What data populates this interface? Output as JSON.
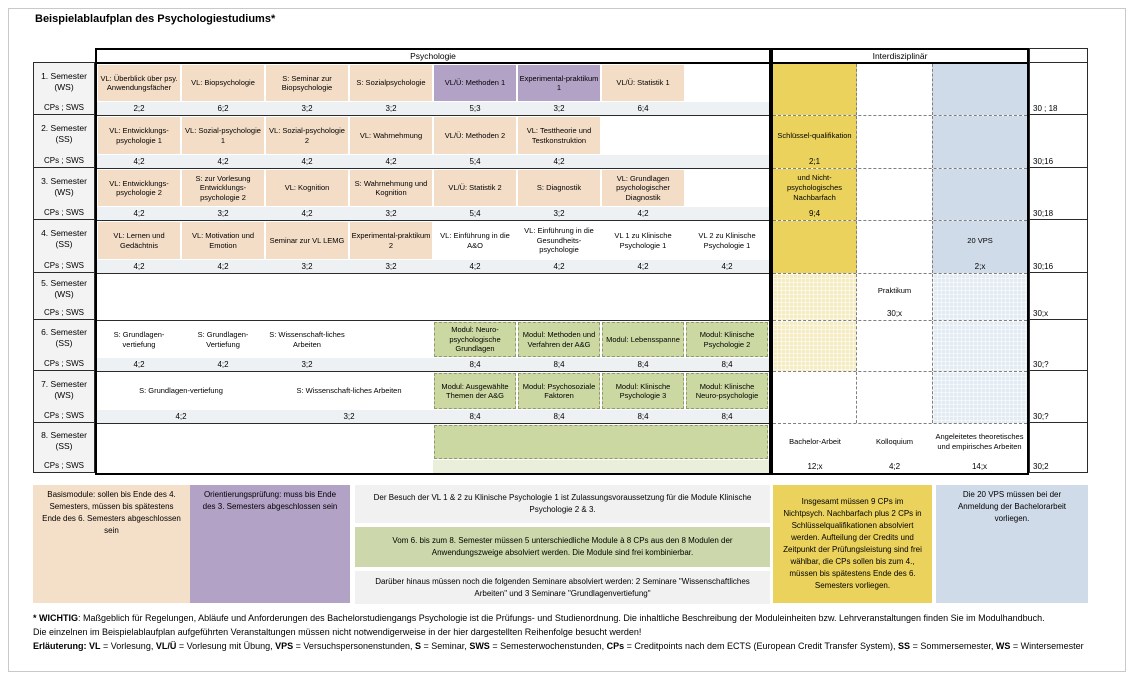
{
  "title": "Beispielablaufplan des Psychologiestudiums*",
  "table": {
    "psych_header": "Psychologie",
    "inter_header": "Interdisziplinär",
    "cps_label": "CPs ; SWS",
    "semesters": [
      {
        "label": "1. Semester",
        "term": "(WS)",
        "total": "30 ; 18",
        "yellow": "solid",
        "blue": "solid",
        "courses": [
          {
            "t": "VL: Überblick über psy. Anwendungsfächer",
            "cp": "2;2",
            "c": 1,
            "k": "beige"
          },
          {
            "t": "VL: Biopsychologie",
            "cp": "6;2",
            "c": 2,
            "k": "beige"
          },
          {
            "t": "S: Seminar zur Biopsychologie",
            "cp": "3;2",
            "c": 3,
            "k": "beige"
          },
          {
            "t": "S: Sozialpsychologie",
            "cp": "3;2",
            "c": 4,
            "k": "beige"
          },
          {
            "t": "VL/Ü: Methoden 1",
            "cp": "5;3",
            "c": 5,
            "k": "purple"
          },
          {
            "t": "Experimental-praktikum 1",
            "cp": "3;2",
            "c": 6,
            "k": "purple"
          },
          {
            "t": "VL/Ü: Statistik 1",
            "cp": "6;4",
            "c": 7,
            "k": "beige"
          }
        ],
        "inter": {}
      },
      {
        "label": "2. Semester",
        "term": "(SS)",
        "total": "30;16",
        "yellow": "solid",
        "blue": "solid",
        "courses": [
          {
            "t": "VL: Entwicklungs-psychologie 1",
            "cp": "4;2",
            "c": 1,
            "k": "beige"
          },
          {
            "t": "VL: Sozial-psychologie 1",
            "cp": "4;2",
            "c": 2,
            "k": "beige"
          },
          {
            "t": "VL: Sozial-psychologie 2",
            "cp": "4;2",
            "c": 3,
            "k": "beige"
          },
          {
            "t": "VL: Wahrnehmung",
            "cp": "4;2",
            "c": 4,
            "k": "beige"
          },
          {
            "t": "VL/Ü: Methoden 2",
            "cp": "5;4",
            "c": 5,
            "k": "beige"
          },
          {
            "t": "VL: Testtheorie und Testkonstruktion",
            "cp": "4;2",
            "c": 6,
            "k": "beige"
          }
        ],
        "inter": {
          "y": {
            "t": "Schlüssel-qualifikation",
            "cp": "2;1"
          }
        }
      },
      {
        "label": "3. Semester",
        "term": "(WS)",
        "total": "30;18",
        "yellow": "solid",
        "blue": "solid",
        "courses": [
          {
            "t": "VL: Entwicklungs-psychologie 2",
            "cp": "4;2",
            "c": 1,
            "k": "beige"
          },
          {
            "t": "S: zur Vorlesung Entwicklungs-psychologie 2",
            "cp": "3;2",
            "c": 2,
            "k": "beige"
          },
          {
            "t": "VL: Kognition",
            "cp": "4;2",
            "c": 3,
            "k": "beige"
          },
          {
            "t": "S: Wahrnehmung und Kognition",
            "cp": "3;2",
            "c": 4,
            "k": "beige"
          },
          {
            "t": "VL/Ü: Statistik 2",
            "cp": "5;4",
            "c": 5,
            "k": "beige"
          },
          {
            "t": "S: Diagnostik",
            "cp": "3;2",
            "c": 6,
            "k": "beige"
          },
          {
            "t": "VL: Grundlagen psychologischer Diagnostik",
            "cp": "4;2",
            "c": 7,
            "k": "beige"
          }
        ],
        "inter": {
          "y": {
            "t": "und Nicht-psychologisches Nachbarfach",
            "cp": "9;4"
          }
        }
      },
      {
        "label": "4. Semester",
        "term": "(SS)",
        "total": "30;16",
        "yellow": "solid",
        "blue": "solid",
        "courses": [
          {
            "t": "VL: Lernen und Gedächtnis",
            "cp": "4;2",
            "c": 1,
            "k": "beige"
          },
          {
            "t": "VL: Motivation und Emotion",
            "cp": "4;2",
            "c": 2,
            "k": "beige"
          },
          {
            "t": "Seminar zur VL LEMG",
            "cp": "3;2",
            "c": 3,
            "k": "beige"
          },
          {
            "t": "Experimental-praktikum 2",
            "cp": "3;2",
            "c": 4,
            "k": "beige"
          },
          {
            "t": "VL: Einführung in die A&O",
            "cp": "4;2",
            "c": 5,
            "k": "white"
          },
          {
            "t": "VL: Einführung in die Gesundheits-psychologie",
            "cp": "4;2",
            "c": 6,
            "k": "white"
          },
          {
            "t": "VL 1 zu Klinische Psychologie 1",
            "cp": "4;2",
            "c": 7,
            "k": "white"
          },
          {
            "t": "VL 2 zu Klinische Psychologie 1",
            "cp": "4;2",
            "c": 8,
            "k": "white"
          }
        ],
        "inter": {
          "b": {
            "t": "20 VPS",
            "cp": "2;x"
          }
        }
      },
      {
        "label": "5. Semester",
        "term": "(WS)",
        "total": "30;x",
        "yellow": "light",
        "blue": "light",
        "merged": true,
        "courses": [],
        "inter": {
          "m": {
            "t": "Praktikum",
            "cp": "30;x"
          }
        }
      },
      {
        "label": "6. Semester",
        "term": "(SS)",
        "total": "30;?",
        "yellow": "light",
        "blue": "light",
        "courses": [
          {
            "t": "S: Grundlagen-vertiefung",
            "cp": "4;2",
            "c": 1,
            "k": "white"
          },
          {
            "t": "S: Grundlagen-Vertiefung",
            "cp": "4;2",
            "c": 2,
            "k": "white"
          },
          {
            "t": "S: Wissenschaft-liches Arbeiten",
            "cp": "3;2",
            "c": 3,
            "k": "white"
          },
          {
            "t": "Modul: Neuro-psychologische Grundlagen",
            "cp": "8;4",
            "c": 5,
            "k": "green"
          },
          {
            "t": "Modul: Methoden und Verfahren der A&G",
            "cp": "8;4",
            "c": 6,
            "k": "green"
          },
          {
            "t": "Modul: Lebensspanne",
            "cp": "8;4",
            "c": 7,
            "k": "green"
          },
          {
            "t": "Modul: Klinische Psychologie 2",
            "cp": "8;4",
            "c": 8,
            "k": "green"
          }
        ],
        "inter": {}
      },
      {
        "label": "7. Semester",
        "term": "(WS)",
        "total": "30;?",
        "yellow": "none",
        "blue": "light",
        "courses": [
          {
            "t": "S: Grundlagen-vertiefung",
            "cp": "4;2",
            "c": 1,
            "s": 2,
            "k": "white"
          },
          {
            "t": "S: Wissenschaft-liches Arbeiten",
            "cp": "3;2",
            "c": 3,
            "s": 2,
            "k": "white"
          },
          {
            "t": "Modul: Ausgewählte Themen der A&G",
            "cp": "8;4",
            "c": 5,
            "k": "green"
          },
          {
            "t": "Modul: Psychosoziale Faktoren",
            "cp": "8;4",
            "c": 6,
            "k": "green"
          },
          {
            "t": "Modul: Klinische Psychologie 3",
            "cp": "8;4",
            "c": 7,
            "k": "green"
          },
          {
            "t": "Modul: Klinische Neuro-psychologie",
            "cp": "8;4",
            "c": 8,
            "k": "green"
          }
        ],
        "inter": {}
      },
      {
        "label": "8. Semester",
        "term": "(SS)",
        "total": "30;2",
        "yellow": "none",
        "blue": "none",
        "merged": true,
        "no_dash": true,
        "green_area": {
          "col": 5,
          "span": 4
        },
        "courses": [],
        "inter": {
          "y": {
            "t": "Bachelor-Arbeit",
            "cp": "12;x"
          },
          "m": {
            "t": "Kolloquium",
            "cp": "4;2"
          },
          "b": {
            "t": "Angeleitetes theoretisches und empirisches Arbeiten",
            "cp": "14;x"
          }
        }
      }
    ]
  },
  "notes": {
    "basismodule": "Basismodule: sollen bis Ende des 4. Semesters, müssen bis spätestens Ende des 6. Semesters abgeschlossen sein",
    "orientierung": "Orientierungsprüfung: muss bis Ende des 3. Semesters abgeschlossen sein",
    "klinische": "Der Besuch der VL 1 & 2 zu Klinische Psychologie 1 ist Zulassungsvoraussetzung für die Module Klinische Psychologie 2 & 3.",
    "module_combo": "Vom 6. bis zum 8. Semester müssen 5 unterschiedliche Module à 8 CPs aus den 8 Modulen der Anwendungszweige absolviert werden. Die Module sind frei kombinierbar.",
    "seminare": "Darüber hinaus müssen noch die folgenden Seminare absolviert werden: 2 Seminare \"Wissenschaftliches Arbeiten\" und 3 Seminare \"Grundlagenvertiefung\"",
    "nachbarfach": "Insgesamt müssen 9 CPs im Nichtpsych. Nachbarfach plus 2 CPs in Schlüsselqualifikationen absolviert werden. Aufteilung der Credits und Zeitpunkt der Prüfungsleistung sind frei wählbar, die CPs sollen bis zum 4., müssen bis spätestens Ende des 6. Semesters vorliegen.",
    "vps": "Die 20 VPS müssen bei der Anmeldung der Bachelorarbeit vorliegen."
  },
  "footer": {
    "line1": [
      {
        "b": 1,
        "t": "* WICHTIG"
      },
      {
        "b": 0,
        "t": ": Maßgeblich für Regelungen, Abläufe und Anforderungen des Bachelorstudiengangs Psychologie ist die Prüfungs- und Studienordnung. Die inhaltliche Beschreibung der Moduleinheiten bzw. Lehrveranstaltungen finden Sie im Modulhandbuch."
      }
    ],
    "line2": [
      {
        "b": 0,
        "t": "Die einzelnen im Beispielablaufplan aufgeführten Veranstaltungen müssen nicht notwendigerweise in der hier dargestellten Reihenfolge besucht werden!"
      }
    ],
    "line3": [
      {
        "b": 1,
        "t": "Erläuterung: "
      },
      {
        "b": 1,
        "t": "VL"
      },
      {
        "b": 0,
        "t": " = Vorlesung, "
      },
      {
        "b": 1,
        "t": "VL/Ü"
      },
      {
        "b": 0,
        "t": " = Vorlesung mit Übung, "
      },
      {
        "b": 1,
        "t": "VPS"
      },
      {
        "b": 0,
        "t": " = Versuchspersonenstunden, "
      },
      {
        "b": 1,
        "t": "S"
      },
      {
        "b": 0,
        "t": " = Seminar, "
      },
      {
        "b": 1,
        "t": "SWS"
      },
      {
        "b": 0,
        "t": " = Semesterwochenstunden, "
      },
      {
        "b": 1,
        "t": "CPs"
      },
      {
        "b": 0,
        "t": " = Creditpoints nach dem ECTS (European Credit Transfer System), "
      },
      {
        "b": 1,
        "t": "SS"
      },
      {
        "b": 0,
        "t": " = Sommersemester, "
      },
      {
        "b": 1,
        "t": "WS"
      },
      {
        "b": 0,
        "t": " = Wintersemester"
      }
    ]
  }
}
